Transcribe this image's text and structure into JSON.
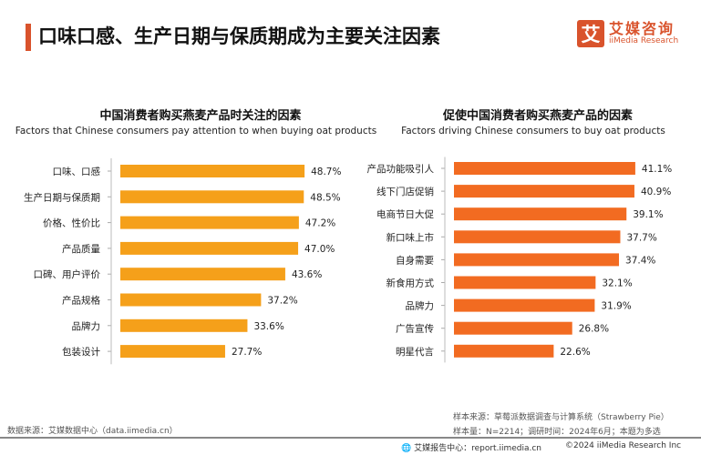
{
  "header": {
    "title": "口味口感、生产日期与保质期成为主要关注因素",
    "logo_mark": "艾",
    "logo_cn": "艾媒咨询",
    "logo_en": "iiMedia Research",
    "accent": "#d9532c"
  },
  "chart_data": [
    {
      "type": "bar",
      "orientation": "horizontal",
      "title": "中国消费者购买燕麦产品时关注的因素",
      "subtitle": "Factors that Chinese consumers pay attention to when buying oat products",
      "categories": [
        "口味、口感",
        "生产日期与保质期",
        "价格、性价比",
        "产品质量",
        "口碑、用户评价",
        "产品规格",
        "品牌力",
        "包装设计"
      ],
      "values": [
        48.7,
        48.5,
        47.2,
        47.0,
        43.6,
        37.2,
        33.6,
        27.7
      ],
      "labels": [
        "48.7%",
        "48.5%",
        "47.2%",
        "47.0%",
        "43.6%",
        "37.2%",
        "33.6%",
        "27.7%"
      ],
      "unit": "%",
      "color": "#f5a01a"
    },
    {
      "type": "bar",
      "orientation": "horizontal",
      "title": "促使中国消费者购买燕麦产品的因素",
      "subtitle": "Factors driving Chinese consumers to buy oat products",
      "categories": [
        "产品功能吸引人",
        "线下门店促销",
        "电商节日大促",
        "新口味上市",
        "自身需要",
        "新食用方式",
        "品牌力",
        "广告宣传",
        "明星代言"
      ],
      "values": [
        41.1,
        40.9,
        39.1,
        37.7,
        37.4,
        32.1,
        31.9,
        26.8,
        22.6
      ],
      "labels": [
        "41.1%",
        "40.9%",
        "39.1%",
        "37.7%",
        "37.4%",
        "32.1%",
        "31.9%",
        "26.8%",
        "22.6%"
      ],
      "unit": "%",
      "color": "#f26b21"
    }
  ],
  "footer": {
    "source_left": "数据来源：艾媒数据中心（data.iimedia.cn）",
    "sample_source": "样本来源：草莓派数据调查与计算系统（Strawberry Pie）",
    "sample_info": "样本量：N=2214；调研时间：2024年6月；本题为多选",
    "report": "艾媒报告中心：report.iimedia.cn",
    "copyright": "©2024  iiMedia Research Inc"
  }
}
